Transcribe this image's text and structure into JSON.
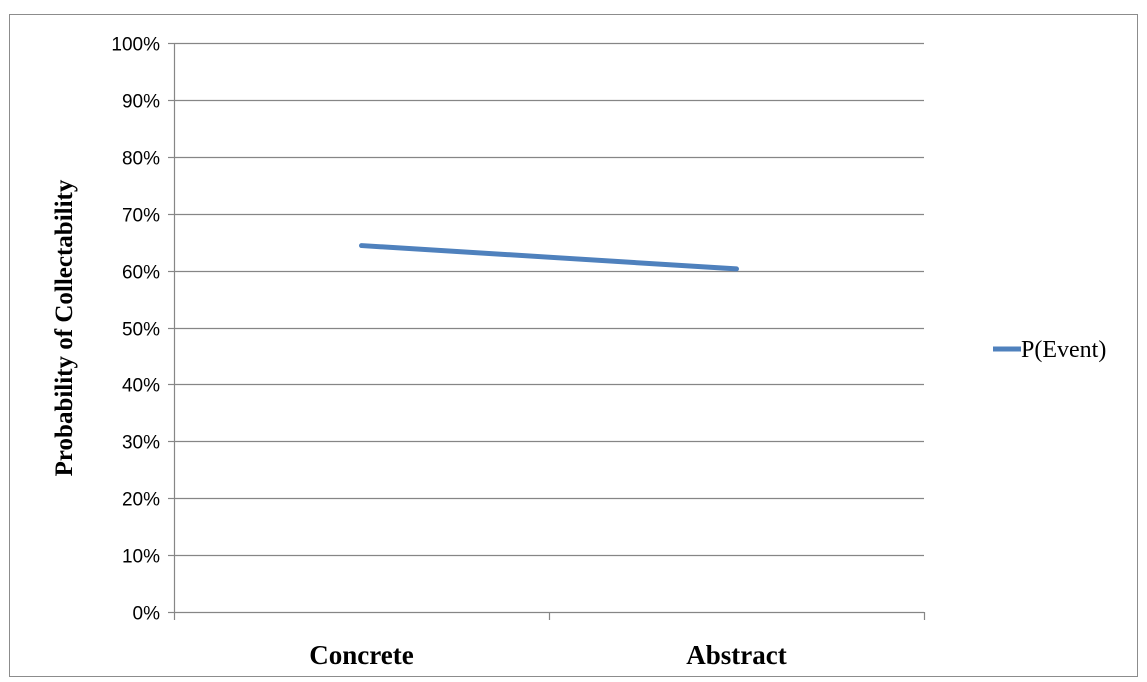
{
  "chart_data": {
    "type": "line",
    "title": "",
    "xlabel": "",
    "ylabel": "Probability of Collectability",
    "categories": [
      "Concrete",
      "Abstract"
    ],
    "series": [
      {
        "name": "P(Event)",
        "values": [
          0.644,
          0.603
        ],
        "color": "#4F81BD"
      }
    ],
    "ylim": [
      0,
      1
    ],
    "yticks": [
      "0%",
      "10%",
      "20%",
      "30%",
      "40%",
      "50%",
      "60%",
      "70%",
      "80%",
      "90%",
      "100%"
    ],
    "grid": true,
    "legend": "right"
  }
}
